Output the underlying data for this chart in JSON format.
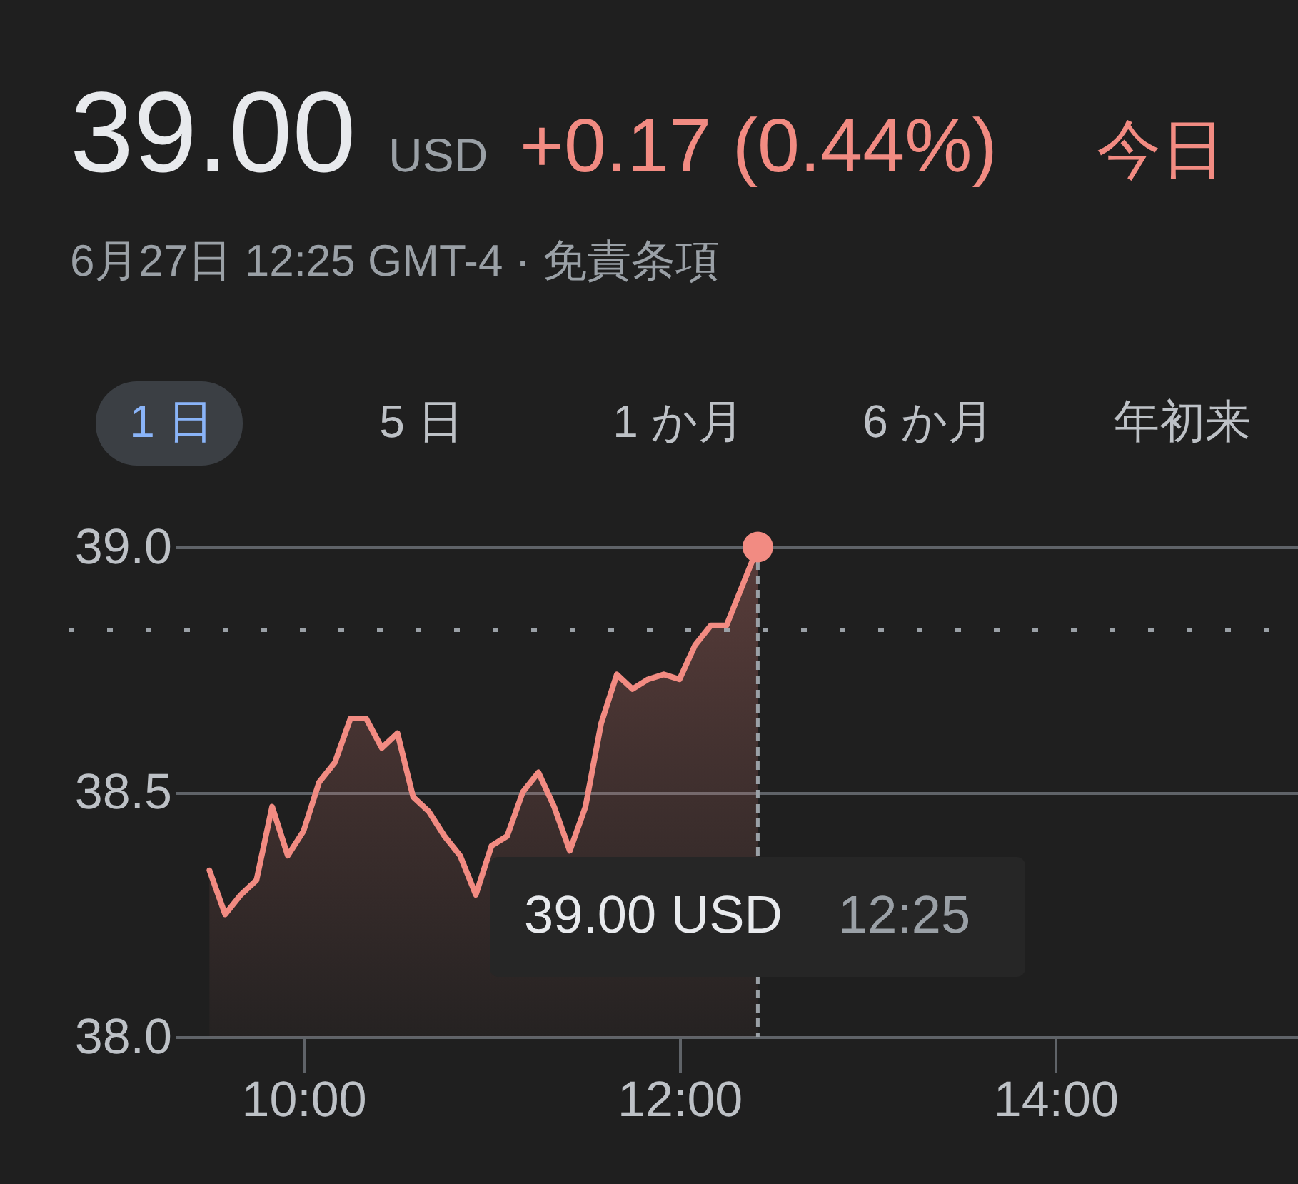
{
  "chart_data": {
    "type": "area",
    "title": "39.00",
    "subtitle": "6月27日 12:25 GMT-4 · 免責条項",
    "annotations": [
      "USD",
      "+0.17 (0.44%)",
      "今日",
      "1 日",
      "5 日",
      "1 か月",
      "6 か月",
      "年初来",
      "39.00 USD",
      "12:25"
    ],
    "x": [
      9.5,
      9.5833,
      9.6667,
      9.75,
      9.8333,
      9.9167,
      10,
      10.0833,
      10.1667,
      10.25,
      10.3333,
      10.4167,
      10.5,
      10.5833,
      10.6667,
      10.75,
      10.8333,
      10.9167,
      11,
      11.0833,
      11.1667,
      11.25,
      11.3333,
      11.4167,
      11.5,
      11.5833,
      11.6667,
      11.75,
      11.8333,
      11.9167,
      12,
      12.0833,
      12.1667,
      12.25,
      12.3333,
      12.4167
    ],
    "series": [
      {
        "color": "#f28b82",
        "values": [
          38.34,
          38.25,
          38.29,
          38.32,
          38.47,
          38.37,
          38.42,
          38.52,
          38.56,
          38.65,
          38.65,
          38.59,
          38.62,
          38.49,
          38.46,
          38.41,
          38.37,
          38.29,
          38.39,
          38.41,
          38.5,
          38.54,
          38.47,
          38.38,
          38.47,
          38.64,
          38.74,
          38.71,
          38.73,
          38.74,
          38.73,
          38.8,
          38.84,
          38.84,
          38.92,
          39.0
        ]
      },
      {
        "type": "scatter",
        "color": "#f28b82",
        "x": [
          12.4167
        ],
        "values": [
          39.0
        ]
      }
    ],
    "xlim": [
      9.32,
      15.29
    ],
    "xticks": [
      {
        "value": 10,
        "label": "10:00"
      },
      {
        "value": 12,
        "label": "12:00"
      },
      {
        "value": 14,
        "label": "14:00"
      }
    ],
    "ylim": [
      38.0,
      39.0
    ],
    "yticks": [
      {
        "value": 38,
        "label": "38.0"
      },
      38.5,
      {
        "value": 39,
        "label": "39.0"
      }
    ],
    "grid": "y",
    "ref_lines": [
      {
        "axis": "y",
        "value": 38.83,
        "color": "#9aa0a6",
        "line_style": "dotted"
      },
      {
        "axis": "x",
        "value": 12.4167,
        "color": "#9aa0a6",
        "line_style": "dashed"
      }
    ]
  }
}
